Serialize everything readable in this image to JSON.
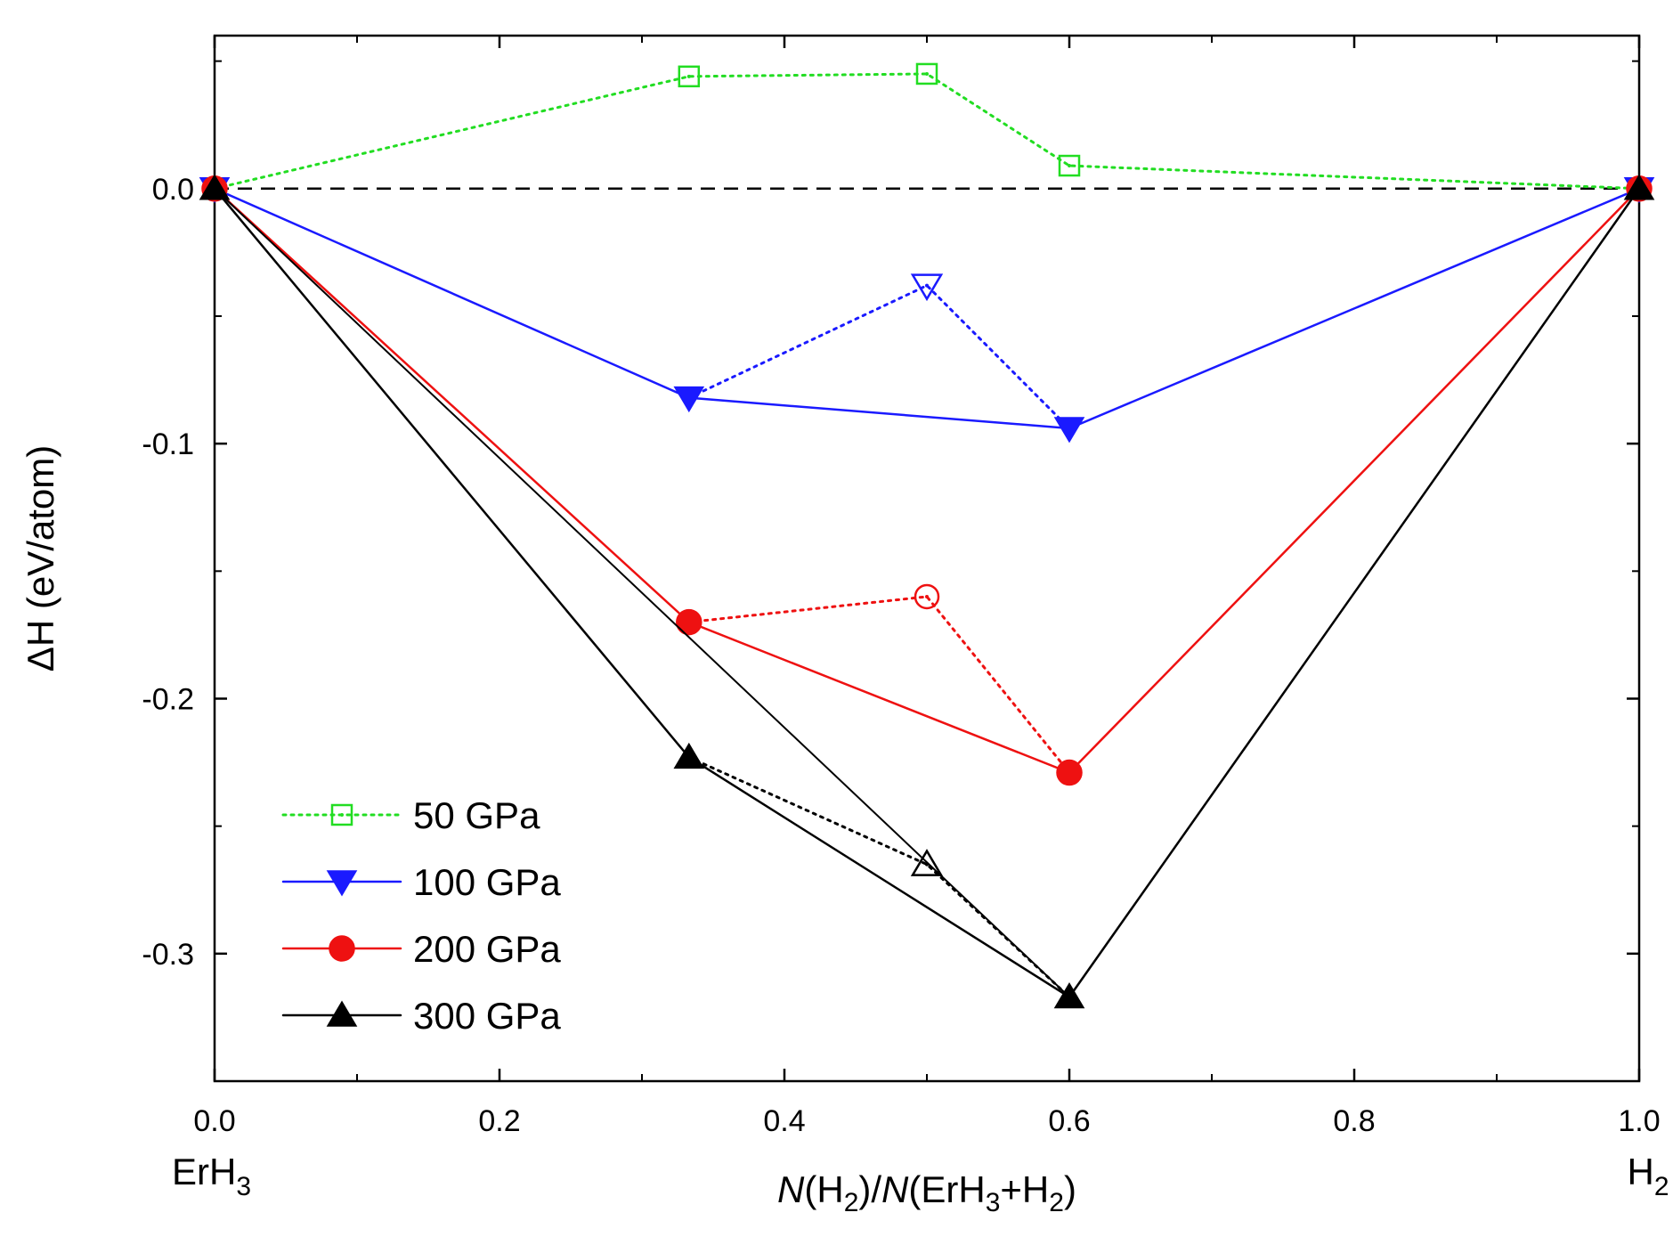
{
  "chart_data": {
    "type": "line",
    "title": "",
    "xlabel": {
      "parts": [
        {
          "text": "N",
          "italic": true
        },
        {
          "text": "(H"
        },
        {
          "text": "2",
          "sub": true
        },
        {
          "text": ")/"
        },
        {
          "text": "N",
          "italic": true
        },
        {
          "text": "(ErH"
        },
        {
          "text": "3",
          "sub": true
        },
        {
          "text": "+H"
        },
        {
          "text": "2",
          "sub": true
        },
        {
          "text": ")"
        }
      ]
    },
    "ylabel": "ΔH (eV/atom)",
    "xlim": [
      0.0,
      1.0
    ],
    "ylim": [
      -0.35,
      0.06
    ],
    "x_ticks": [
      0.0,
      0.2,
      0.4,
      0.6,
      0.8,
      1.0
    ],
    "x_tick_labels": [
      "0.0",
      "0.2",
      "0.4",
      "0.6",
      "0.8",
      "1.0"
    ],
    "y_ticks": [
      0.0,
      -0.1,
      -0.2,
      -0.3
    ],
    "y_tick_labels": [
      "0.0",
      "-0.1",
      "-0.2",
      "-0.3"
    ],
    "x_end_labels": {
      "left": {
        "base": "ErH",
        "sub": "3"
      },
      "right": {
        "base": "H",
        "sub": "2"
      }
    },
    "reference_line": {
      "y": 0.0,
      "style": "dashed",
      "color": "#000000"
    },
    "legend_position": "bottom-left",
    "series": [
      {
        "name": "50 GPa",
        "color": "#22dd22",
        "marker": "square",
        "line_style": "dotted",
        "points": [
          [
            0.0,
            0.0
          ],
          [
            0.333,
            0.044
          ],
          [
            0.5,
            0.045
          ],
          [
            0.6,
            0.009
          ],
          [
            1.0,
            0.0
          ]
        ],
        "hull": [],
        "metastable": []
      },
      {
        "name": "100 GPa",
        "color": "#1a1aff",
        "marker": "triangle-down",
        "line_style": "solid",
        "points": [
          [
            0.0,
            0.0
          ],
          [
            0.333,
            -0.082
          ],
          [
            0.6,
            -0.094
          ],
          [
            1.0,
            0.0
          ]
        ],
        "hull": [],
        "metastable": [
          [
            0.5,
            -0.038
          ]
        ]
      },
      {
        "name": "200 GPa",
        "color": "#ee1111",
        "marker": "circle",
        "line_style": "solid",
        "points": [
          [
            0.0,
            0.0
          ],
          [
            0.333,
            -0.17
          ],
          [
            0.6,
            -0.229
          ],
          [
            1.0,
            0.0
          ]
        ],
        "hull": [],
        "metastable": [
          [
            0.5,
            -0.16
          ]
        ]
      },
      {
        "name": "300 GPa",
        "color": "#000000",
        "marker": "triangle-up",
        "line_style": "solid",
        "points": [
          [
            0.0,
            0.0
          ],
          [
            0.333,
            -0.223
          ],
          [
            0.6,
            -0.317
          ],
          [
            1.0,
            0.0
          ]
        ],
        "hull": [
          [
            0.0,
            0.0
          ],
          [
            0.6,
            -0.317
          ],
          [
            1.0,
            0.0
          ]
        ],
        "metastable": [
          [
            0.5,
            -0.265
          ]
        ]
      }
    ]
  }
}
